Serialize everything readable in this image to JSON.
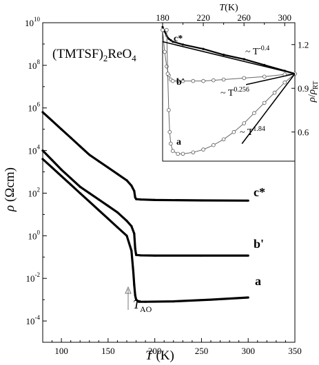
{
  "chart_data": [
    {
      "type": "line",
      "title": "",
      "compound": {
        "base": "(TMTSF)",
        "sub": "2",
        "rest": "ReO",
        "sub2": "4"
      },
      "xlabel": {
        "sym": "T",
        "unit": " (K)"
      },
      "ylabel": {
        "sym": "ρ",
        "unit": " (Ωcm)"
      },
      "xlim": [
        80,
        350
      ],
      "ylim_log10": [
        -5,
        10
      ],
      "xticks": [
        100,
        150,
        200,
        250,
        300,
        350
      ],
      "yticks": [
        {
          "exp": -4,
          "label_base": "10",
          "label_exp": "-4"
        },
        {
          "exp": -2,
          "label_base": "10",
          "label_exp": "-2"
        },
        {
          "exp": 0,
          "label_base": "10",
          "label_exp": "0"
        },
        {
          "exp": 2,
          "label_base": "10",
          "label_exp": "2"
        },
        {
          "exp": 4,
          "label_base": "10",
          "label_exp": "4"
        },
        {
          "exp": 6,
          "label_base": "10",
          "label_exp": "6"
        },
        {
          "exp": 8,
          "label_base": "10",
          "label_exp": "8"
        },
        {
          "exp": 10,
          "label_base": "10",
          "label_exp": "10"
        }
      ],
      "annotation": {
        "sym": "T",
        "sub": "AO",
        "x": 180
      },
      "series": [
        {
          "name": "c*",
          "x": [
            80,
            90,
            100,
            110,
            120,
            130,
            140,
            150,
            160,
            170,
            175,
            178,
            179,
            180,
            185,
            200,
            250,
            300
          ],
          "log10_y": [
            5.8,
            5.4,
            5.0,
            4.6,
            4.2,
            3.8,
            3.5,
            3.2,
            2.9,
            2.6,
            2.35,
            2.1,
            1.8,
            1.72,
            1.7,
            1.68,
            1.66,
            1.65
          ]
        },
        {
          "name": "b'",
          "x": [
            80,
            90,
            100,
            110,
            120,
            130,
            140,
            150,
            160,
            170,
            175,
            178,
            179,
            180,
            185,
            200,
            250,
            300
          ],
          "log10_y": [
            4.0,
            3.55,
            3.1,
            2.7,
            2.3,
            2.0,
            1.7,
            1.4,
            1.1,
            0.7,
            0.45,
            0.1,
            -0.6,
            -0.9,
            -0.92,
            -0.93,
            -0.93,
            -0.93
          ],
          "display_name": "b'"
        },
        {
          "name": "a",
          "x": [
            80,
            90,
            100,
            110,
            120,
            130,
            140,
            150,
            160,
            170,
            175,
            177,
            178,
            179,
            180,
            183,
            190,
            220,
            260,
            300
          ],
          "log10_y": [
            3.6,
            3.2,
            2.8,
            2.4,
            2.0,
            1.6,
            1.2,
            0.8,
            0.4,
            0.0,
            -0.7,
            -1.7,
            -2.3,
            -2.8,
            -3.0,
            -3.1,
            -3.1,
            -3.08,
            -3.0,
            -2.9
          ]
        }
      ]
    },
    {
      "type": "line",
      "title": "",
      "xlabel_top": {
        "sym": "T",
        "unit": "(K)"
      },
      "ylabel_right": {
        "sym": "ρ",
        "mid": "/",
        "sym2": "ρ",
        "sub": "RT"
      },
      "xlim": [
        180,
        310
      ],
      "ylim": [
        0.4,
        1.35
      ],
      "xticks": [
        180,
        220,
        260,
        300
      ],
      "yticks": [
        0.6,
        0.9,
        1.2
      ],
      "series": [
        {
          "name": "c*",
          "x": [
            180,
            182,
            184,
            186,
            188,
            190,
            200,
            220,
            240,
            260,
            280,
            300,
            310
          ],
          "y": [
            1.32,
            1.29,
            1.26,
            1.24,
            1.23,
            1.22,
            1.2,
            1.17,
            1.13,
            1.1,
            1.06,
            1.02,
            1.0
          ]
        },
        {
          "name": "b'",
          "x": [
            180,
            182,
            184,
            186,
            188,
            190,
            195,
            200,
            210,
            220,
            230,
            240,
            260,
            280,
            300,
            310
          ],
          "y": [
            1.3,
            1.15,
            1.05,
            0.99,
            0.96,
            0.95,
            0.95,
            0.95,
            0.95,
            0.95,
            0.955,
            0.96,
            0.97,
            0.98,
            0.995,
            1.0
          ]
        },
        {
          "name": "a",
          "x": [
            184,
            185,
            186,
            187,
            188,
            190,
            195,
            200,
            210,
            220,
            230,
            240,
            250,
            260,
            270,
            280,
            290,
            300,
            310
          ],
          "y": [
            1.3,
            1.0,
            0.75,
            0.6,
            0.52,
            0.47,
            0.45,
            0.45,
            0.46,
            0.48,
            0.51,
            0.55,
            0.6,
            0.66,
            0.73,
            0.8,
            0.87,
            0.94,
            1.0
          ]
        }
      ],
      "fits": [
        {
          "label_base": "~ T",
          "label_exp": "-0.4",
          "x": [
            180,
            310
          ],
          "y": [
            1.22,
            1.0
          ]
        },
        {
          "label_base": "~ T",
          "label_exp": "0.256",
          "x": [
            262,
            310
          ],
          "y": [
            0.925,
            1.0
          ]
        },
        {
          "label_base": "~ T",
          "label_exp": "1.84",
          "x": [
            258,
            310
          ],
          "y": [
            0.52,
            1.0
          ]
        }
      ]
    }
  ]
}
